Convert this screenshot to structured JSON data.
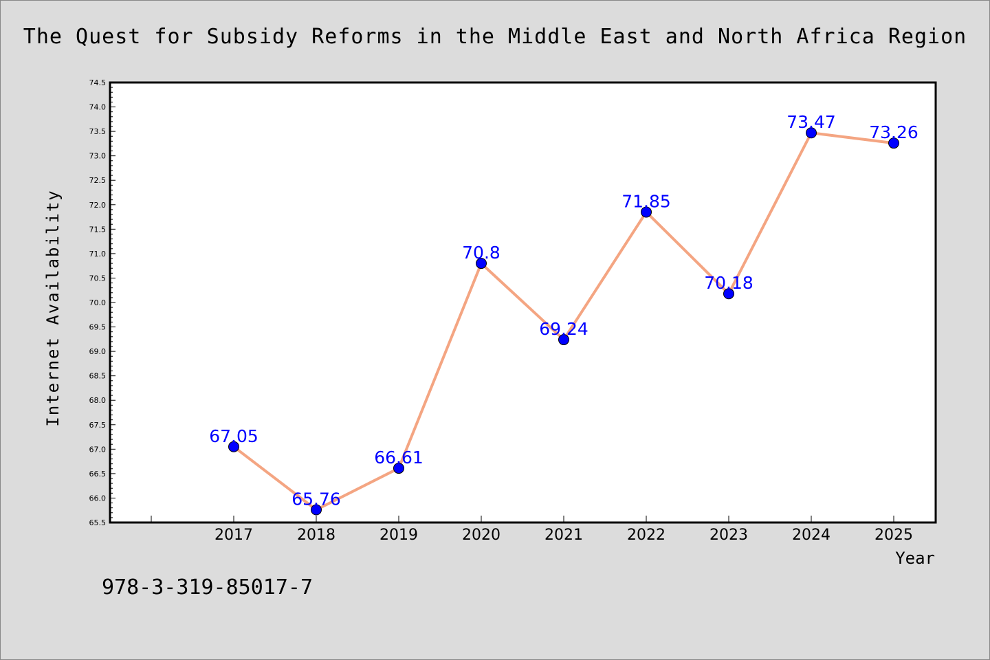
{
  "chart_data": {
    "type": "line",
    "title": "The Quest for Subsidy Reforms in the Middle East and North Africa Region",
    "xlabel": "Year",
    "ylabel": "Internet Availability",
    "categories": [
      "2017",
      "2018",
      "2019",
      "2020",
      "2021",
      "2022",
      "2023",
      "2024",
      "2025"
    ],
    "series": [
      {
        "values": [
          67.05,
          65.76,
          66.61,
          70.8,
          69.24,
          71.85,
          70.18,
          73.47,
          73.26
        ],
        "labels": [
          "67.05",
          "65.76",
          "66.61",
          "70.8",
          "69.24",
          "71.85",
          "70.18",
          "73.47",
          "73.26"
        ]
      }
    ],
    "ylim": [
      65.5,
      74.5
    ],
    "yticks": [
      "65.5",
      "66.0",
      "66.5",
      "67.0",
      "67.5",
      "68.0",
      "68.5",
      "69.0",
      "69.5",
      "70.0",
      "70.5",
      "71.0",
      "71.5",
      "72.0",
      "72.5",
      "73.0",
      "73.5",
      "74.0",
      "74.5"
    ],
    "grid": false,
    "colors": {
      "line": "#f4a582",
      "marker": "#0000ff",
      "data_label": "#0000ff",
      "background": "#dcdcdc",
      "plot_background": "#ffffff"
    }
  },
  "footer": {
    "isbn": "978-3-319-85017-7"
  }
}
